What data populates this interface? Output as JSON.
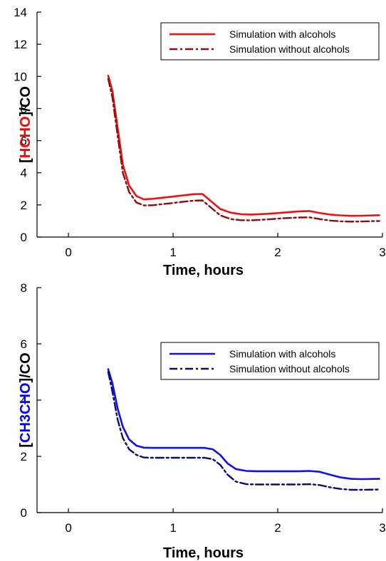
{
  "chart_data": [
    {
      "type": "line",
      "xlabel": "Time, hours",
      "ylabel_parts": [
        "[",
        "HCHO",
        "]/CO"
      ],
      "ylabel_colors": [
        "#000000",
        "#ff0000",
        "#000000"
      ],
      "xlim": [
        -0.3,
        3
      ],
      "ylim": [
        0,
        14
      ],
      "x_ticks": [
        0,
        1,
        2,
        3
      ],
      "y_ticks": [
        0,
        2,
        4,
        6,
        8,
        10,
        12,
        14
      ],
      "grid": false,
      "legend_position": "top-right",
      "series": [
        {
          "name": "Simulation with alcohols",
          "color": "#ee1111",
          "dash": "solid",
          "x": [
            0.38,
            0.42,
            0.47,
            0.52,
            0.58,
            0.65,
            0.72,
            0.8,
            0.9,
            1.0,
            1.1,
            1.2,
            1.28,
            1.35,
            1.45,
            1.55,
            1.65,
            1.75,
            1.9,
            2.05,
            2.2,
            2.3,
            2.4,
            2.5,
            2.6,
            2.7,
            2.8,
            2.97
          ],
          "y": [
            10.05,
            9.1,
            6.8,
            4.5,
            3.2,
            2.55,
            2.35,
            2.38,
            2.45,
            2.52,
            2.6,
            2.67,
            2.68,
            2.3,
            1.75,
            1.52,
            1.42,
            1.4,
            1.45,
            1.52,
            1.6,
            1.62,
            1.5,
            1.4,
            1.35,
            1.32,
            1.33,
            1.36
          ]
        },
        {
          "name": "Simulation without alcohols",
          "color": "#8b0d0d",
          "dash": "dashdot",
          "x": [
            0.38,
            0.42,
            0.47,
            0.52,
            0.58,
            0.65,
            0.72,
            0.8,
            0.9,
            1.0,
            1.1,
            1.2,
            1.28,
            1.35,
            1.45,
            1.55,
            1.65,
            1.75,
            1.9,
            2.05,
            2.2,
            2.3,
            2.4,
            2.5,
            2.6,
            2.7,
            2.8,
            2.97
          ],
          "y": [
            9.85,
            8.7,
            6.3,
            4.0,
            2.8,
            2.15,
            1.97,
            1.98,
            2.05,
            2.12,
            2.2,
            2.27,
            2.28,
            1.9,
            1.35,
            1.12,
            1.05,
            1.04,
            1.1,
            1.17,
            1.22,
            1.23,
            1.12,
            1.03,
            0.98,
            0.96,
            0.97,
            1.0
          ]
        }
      ]
    },
    {
      "type": "line",
      "xlabel": "Time, hours",
      "ylabel_parts": [
        "[",
        "CH3CHO",
        "]/CO"
      ],
      "ylabel_colors": [
        "#000000",
        "#0000ff",
        "#000000"
      ],
      "xlim": [
        -0.3,
        3
      ],
      "ylim": [
        0,
        8
      ],
      "x_ticks": [
        0,
        1,
        2,
        3
      ],
      "y_ticks": [
        0,
        2,
        4,
        6,
        8
      ],
      "grid": false,
      "legend_position": "top-right",
      "series": [
        {
          "name": "Simulation with alcohols",
          "color": "#1010ee",
          "dash": "solid",
          "x": [
            0.38,
            0.42,
            0.47,
            0.52,
            0.58,
            0.65,
            0.72,
            0.8,
            0.9,
            1.0,
            1.1,
            1.2,
            1.3,
            1.38,
            1.45,
            1.52,
            1.6,
            1.7,
            1.8,
            1.9,
            2.0,
            2.1,
            2.2,
            2.3,
            2.4,
            2.5,
            2.6,
            2.7,
            2.8,
            2.97
          ],
          "y": [
            5.1,
            4.6,
            3.7,
            3.05,
            2.6,
            2.38,
            2.31,
            2.3,
            2.3,
            2.3,
            2.3,
            2.3,
            2.3,
            2.25,
            2.05,
            1.75,
            1.55,
            1.48,
            1.47,
            1.47,
            1.47,
            1.47,
            1.47,
            1.48,
            1.45,
            1.35,
            1.25,
            1.2,
            1.19,
            1.2
          ]
        },
        {
          "name": "Simulation without alcohols",
          "color": "#0d0d6b",
          "dash": "dashdot",
          "x": [
            0.38,
            0.42,
            0.47,
            0.52,
            0.58,
            0.65,
            0.72,
            0.8,
            0.9,
            1.0,
            1.1,
            1.2,
            1.3,
            1.38,
            1.45,
            1.52,
            1.6,
            1.7,
            1.8,
            1.9,
            2.0,
            2.1,
            2.2,
            2.3,
            2.4,
            2.5,
            2.6,
            2.7,
            2.8,
            2.97
          ],
          "y": [
            5.0,
            4.3,
            3.3,
            2.65,
            2.25,
            2.05,
            1.96,
            1.95,
            1.95,
            1.95,
            1.95,
            1.95,
            1.95,
            1.9,
            1.7,
            1.35,
            1.1,
            1.01,
            1.0,
            1.0,
            1.0,
            1.0,
            1.0,
            1.01,
            0.98,
            0.9,
            0.84,
            0.81,
            0.81,
            0.82
          ]
        }
      ]
    }
  ]
}
